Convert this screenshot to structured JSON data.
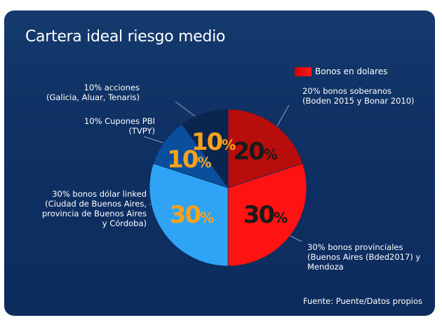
{
  "chart_data": {
    "type": "pie",
    "title": "Cartera ideal riesgo medio",
    "legend": [
      {
        "label": "Bonos en dolares",
        "color": "#e00000"
      }
    ],
    "slices": [
      {
        "name": "bonos-soberanos",
        "value": 20,
        "display": "20",
        "color": "#b80d0d",
        "label_lines": [
          "20% bonos soberanos",
          "(Boden 2015 y Bonar 2010)"
        ],
        "text_color": "#1a1a1a"
      },
      {
        "name": "bonos-provinciales",
        "value": 30,
        "display": "30",
        "color": "#ff1212",
        "label_lines": [
          "30% bonos provinciales",
          "(Buenos Aires (Bded2017) y",
          "Mendoza"
        ],
        "text_color": "#1a1a1a"
      },
      {
        "name": "bonos-dolar-linked",
        "value": 30,
        "display": "30",
        "color": "#2fa4f5",
        "label_lines": [
          "30% bonos dólar linked",
          "(Ciudad de Buenos Aires,",
          "provincia de Buenos Aires",
          "y Córdoba)"
        ],
        "text_color": "#f7a21b"
      },
      {
        "name": "cupones-pbi",
        "value": 10,
        "display": "10",
        "color": "#0a4e9e",
        "label_lines": [
          "10% Cupones PBI",
          "(TVPY)"
        ],
        "text_color": "#f7a21b"
      },
      {
        "name": "acciones",
        "value": 10,
        "display": "10",
        "color": "#0a2550",
        "label_lines": [
          "10% acciones",
          "(Galicia, Aluar, Tenaris)"
        ],
        "text_color": "#f7a21b"
      }
    ],
    "source": "Fuente: Puente/Datos propios"
  }
}
